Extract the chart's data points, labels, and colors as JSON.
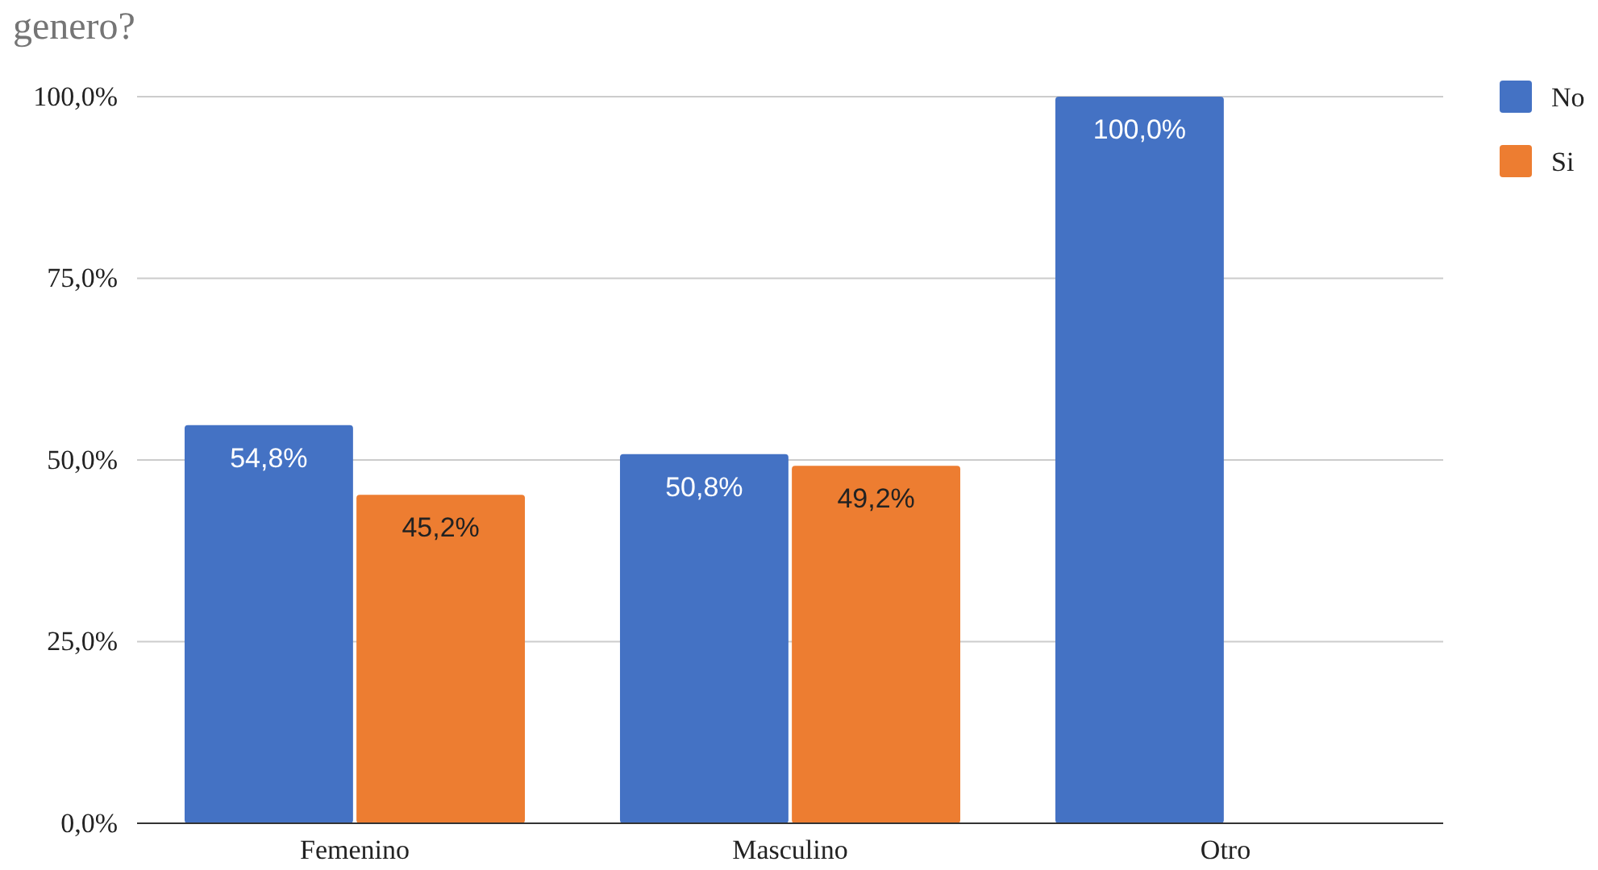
{
  "chart_data": {
    "type": "bar",
    "title": "genero?",
    "categories": [
      "Femenino",
      "Masculino",
      "Otro"
    ],
    "series": [
      {
        "name": "No",
        "color": "#4472c4",
        "values": [
          54.8,
          50.8,
          100.0
        ],
        "value_labels": [
          "54,8%",
          "50,8%",
          "100,0%"
        ]
      },
      {
        "name": "Si",
        "color": "#ed7d31",
        "values": [
          45.2,
          49.2,
          null
        ],
        "value_labels": [
          "45,2%",
          "49,2%",
          null
        ]
      }
    ],
    "ylim": [
      0,
      100
    ],
    "yticks": [
      {
        "value": 0,
        "label": "0,0%"
      },
      {
        "value": 25,
        "label": "25,0%"
      },
      {
        "value": 50,
        "label": "50,0%"
      },
      {
        "value": 75,
        "label": "75,0%"
      },
      {
        "value": 100,
        "label": "100,0%"
      }
    ],
    "grid": "y",
    "legend": "right"
  }
}
